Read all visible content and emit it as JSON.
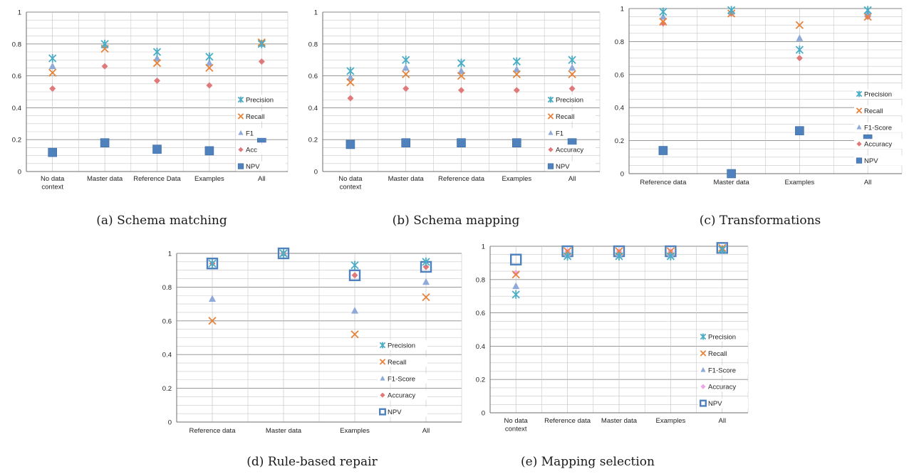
{
  "chart_data": [
    {
      "type": "scatter",
      "caption": "(a) Schema matching",
      "categories": [
        "No data context",
        "Master data",
        "Reference Data",
        "Examples",
        "All"
      ],
      "ylim": [
        0,
        1
      ],
      "yticks": [
        0,
        0.2,
        0.4,
        0.6,
        0.8,
        1
      ],
      "grid": true,
      "legend_position": "bottom-right",
      "series": [
        {
          "name": "Precision",
          "marker": "star",
          "color": "#4aacc5",
          "values": [
            0.71,
            0.8,
            0.75,
            0.72,
            0.8
          ]
        },
        {
          "name": "Recall",
          "marker": "x",
          "color": "#e8833a",
          "values": [
            0.62,
            0.77,
            0.68,
            0.65,
            0.81
          ]
        },
        {
          "name": "F1",
          "marker": "triangle",
          "color": "#8faad8",
          "values": [
            0.66,
            0.79,
            0.71,
            0.68,
            0.8
          ]
        },
        {
          "name": "Acc",
          "marker": "diamond",
          "color": "#e07a7a",
          "values": [
            0.52,
            0.66,
            0.57,
            0.54,
            0.69
          ]
        },
        {
          "name": "NPV",
          "marker": "square",
          "color": "#4f81bd",
          "values": [
            0.12,
            0.18,
            0.14,
            0.13,
            0.21
          ]
        }
      ]
    },
    {
      "type": "scatter",
      "caption": "(b) Schema mapping",
      "categories": [
        "No data context",
        "Master data",
        "Reference data",
        "Examples",
        "All"
      ],
      "ylim": [
        0,
        1
      ],
      "yticks": [
        0,
        0.2,
        0.4,
        0.6,
        0.8,
        1
      ],
      "grid": true,
      "legend_position": "bottom-right",
      "series": [
        {
          "name": "Precision",
          "marker": "star",
          "color": "#4aacc5",
          "values": [
            0.63,
            0.7,
            0.68,
            0.69,
            0.7
          ]
        },
        {
          "name": "Recall",
          "marker": "x",
          "color": "#e8833a",
          "values": [
            0.56,
            0.61,
            0.6,
            0.61,
            0.61
          ]
        },
        {
          "name": "F1",
          "marker": "triangle",
          "color": "#8faad8",
          "values": [
            0.59,
            0.65,
            0.63,
            0.64,
            0.65
          ]
        },
        {
          "name": "Accuracy",
          "marker": "diamond",
          "color": "#e07a7a",
          "values": [
            0.46,
            0.52,
            0.51,
            0.51,
            0.52
          ]
        },
        {
          "name": "NPV",
          "marker": "square",
          "color": "#4f81bd",
          "values": [
            0.17,
            0.18,
            0.18,
            0.18,
            0.18
          ]
        }
      ]
    },
    {
      "type": "scatter",
      "caption": "(c) Transformations",
      "categories": [
        "Reference data",
        "Master data",
        "Examples",
        "All"
      ],
      "ylim": [
        0,
        1
      ],
      "yticks": [
        0,
        0.2,
        0.4,
        0.6,
        0.8,
        1
      ],
      "grid": true,
      "legend_position": "bottom-right",
      "series": [
        {
          "name": "Precision",
          "marker": "star",
          "color": "#4aacc5",
          "values": [
            0.98,
            0.99,
            0.75,
            0.99
          ]
        },
        {
          "name": "Recall",
          "marker": "x",
          "color": "#e8833a",
          "values": [
            0.92,
            0.97,
            0.9,
            0.95
          ]
        },
        {
          "name": "F1-Score",
          "marker": "triangle",
          "color": "#8faad8",
          "values": [
            0.95,
            0.98,
            0.82,
            0.97
          ]
        },
        {
          "name": "Accuracy",
          "marker": "diamond",
          "color": "#e07a7a",
          "values": [
            0.91,
            0.97,
            0.7,
            0.95
          ]
        },
        {
          "name": "NPV",
          "marker": "square",
          "color": "#4f81bd",
          "values": [
            0.14,
            0.0,
            0.26,
            0.21
          ]
        }
      ]
    },
    {
      "type": "scatter",
      "caption": "(d) Rule-based repair",
      "categories": [
        "Reference data",
        "Master data",
        "Examples",
        "All"
      ],
      "ylim": [
        0,
        1
      ],
      "yticks": [
        0,
        0.2,
        0.4,
        0.6,
        0.8,
        1
      ],
      "grid": true,
      "legend_position": "bottom-right",
      "series": [
        {
          "name": "Precision",
          "marker": "star",
          "color": "#4aacc5",
          "values": [
            0.94,
            1.0,
            0.93,
            0.95
          ]
        },
        {
          "name": "Recall",
          "marker": "x",
          "color": "#e8833a",
          "values": [
            0.6,
            1.0,
            0.52,
            0.74
          ]
        },
        {
          "name": "F1-Score",
          "marker": "triangle",
          "color": "#8faad8",
          "values": [
            0.73,
            1.0,
            0.66,
            0.83
          ]
        },
        {
          "name": "Accuracy",
          "marker": "diamond",
          "color": "#e07a7a",
          "values": [
            0.94,
            1.0,
            0.87,
            0.92
          ]
        },
        {
          "name": "NPV",
          "marker": "square-open",
          "color": "#4f81bd",
          "values": [
            0.94,
            1.0,
            0.87,
            0.92
          ]
        }
      ]
    },
    {
      "type": "scatter",
      "caption": "(e) Mapping selection",
      "categories": [
        "No data context",
        "Reference data",
        "Master data",
        "Examples",
        "All"
      ],
      "ylim": [
        0,
        1
      ],
      "yticks": [
        0,
        0.2,
        0.4,
        0.6,
        0.8,
        1
      ],
      "grid": true,
      "legend_position": "bottom-right",
      "series": [
        {
          "name": "Precision",
          "marker": "star",
          "color": "#4aacc5",
          "values": [
            0.71,
            0.94,
            0.94,
            0.94,
            0.98
          ]
        },
        {
          "name": "Recall",
          "marker": "x",
          "color": "#e8833a",
          "values": [
            0.83,
            0.97,
            0.97,
            0.97,
            0.99
          ]
        },
        {
          "name": "F1-Score",
          "marker": "triangle",
          "color": "#8faad8",
          "values": [
            0.76,
            0.95,
            0.95,
            0.95,
            0.98
          ]
        },
        {
          "name": "Accuracy",
          "marker": "diamond",
          "color": "#f0a6e6",
          "values": [
            0.84,
            0.97,
            0.97,
            0.97,
            0.99
          ]
        },
        {
          "name": "NPV",
          "marker": "square-open",
          "color": "#4f81bd",
          "values": [
            0.92,
            0.97,
            0.97,
            0.97,
            0.99
          ]
        }
      ]
    }
  ]
}
